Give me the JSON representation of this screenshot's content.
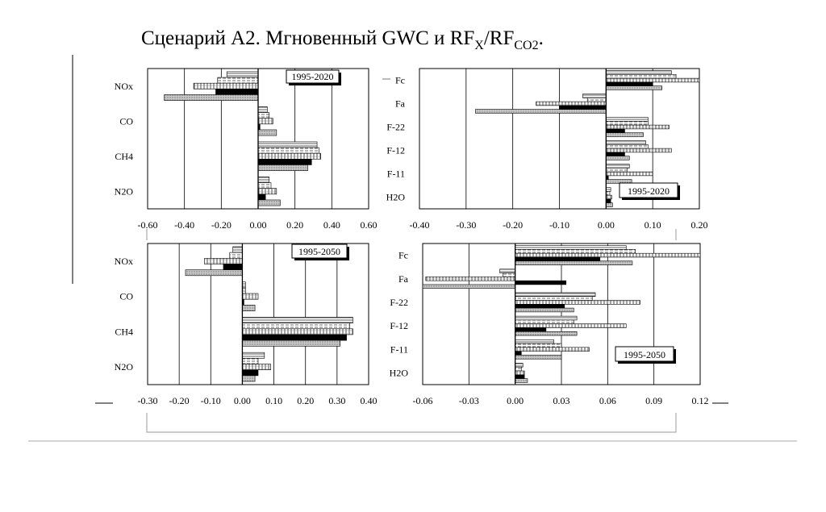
{
  "title": {
    "prefix": "Сценарий А2. Мгновенный GWC и RF",
    "sub1": "X",
    "slash": "/RF",
    "sub2": "CO2",
    "suffix": "."
  },
  "chart_data": [
    {
      "type": "bar",
      "orientation": "horizontal",
      "legend_label": "1995-2020",
      "xlim": [
        -0.6,
        0.6
      ],
      "xticks": [
        "-0.60",
        "-0.40",
        "-0.20",
        "0.00",
        "0.20",
        "0.40",
        "0.60"
      ],
      "categories": [
        "NOx",
        "CO",
        "CH4",
        "N2O"
      ],
      "series": [
        {
          "values": [
            -0.17,
            0.05,
            0.32,
            0.06
          ]
        },
        {
          "values": [
            -0.22,
            0.06,
            0.33,
            0.07
          ]
        },
        {
          "values": [
            -0.35,
            0.08,
            0.34,
            0.1
          ]
        },
        {
          "values": [
            -0.23,
            0.01,
            0.29,
            0.04
          ]
        },
        {
          "values": [
            -0.51,
            0.1,
            0.27,
            0.12
          ]
        }
      ]
    },
    {
      "type": "bar",
      "orientation": "horizontal",
      "legend_label": "1995-2020",
      "xlim": [
        -0.4,
        0.2
      ],
      "xticks": [
        "-0.40",
        "-0.30",
        "-0.20",
        "-0.10",
        "0.00",
        "0.10",
        "0.20"
      ],
      "categories": [
        "Fc",
        "Fa",
        "F-22",
        "F-12",
        "F-11",
        "H2O"
      ],
      "series": [
        {
          "values": [
            0.14,
            -0.05,
            0.09,
            0.085,
            0.05,
            0.01
          ]
        },
        {
          "values": [
            0.15,
            -0.04,
            0.09,
            0.09,
            0.045,
            0.008
          ]
        },
        {
          "values": [
            0.2,
            -0.15,
            0.135,
            0.14,
            0.1,
            0.012
          ]
        },
        {
          "values": [
            0.1,
            -0.1,
            0.04,
            0.04,
            0.005,
            0.01
          ]
        },
        {
          "values": [
            0.12,
            -0.28,
            0.08,
            0.05,
            0.055,
            0.014
          ]
        }
      ]
    },
    {
      "type": "bar",
      "orientation": "horizontal",
      "legend_label": "1995-2050",
      "xlim": [
        -0.3,
        0.4
      ],
      "xticks": [
        "-0.30",
        "-0.20",
        "-0.10",
        "0.00",
        "0.10",
        "0.20",
        "0.30",
        "0.40"
      ],
      "categories": [
        "NOx",
        "CO",
        "CH4",
        "N2O"
      ],
      "series": [
        {
          "values": [
            -0.03,
            0.01,
            0.35,
            0.07
          ]
        },
        {
          "values": [
            -0.04,
            0.01,
            0.34,
            0.05
          ]
        },
        {
          "values": [
            -0.12,
            0.05,
            0.35,
            0.09
          ]
        },
        {
          "values": [
            -0.06,
            0.005,
            0.33,
            0.05
          ]
        },
        {
          "values": [
            -0.18,
            0.04,
            0.31,
            0.04
          ]
        }
      ]
    },
    {
      "type": "bar",
      "orientation": "horizontal",
      "legend_label": "1995-2050",
      "xlim": [
        -0.06,
        0.12
      ],
      "xticks": [
        "-0.06",
        "-0.03",
        "0.00",
        "0.03",
        "0.06",
        "0.09",
        "0.12"
      ],
      "categories": [
        "Fc",
        "Fa",
        "F-22",
        "F-12",
        "F-11",
        "H2O"
      ],
      "series": [
        {
          "values": [
            0.072,
            -0.01,
            0.052,
            0.04,
            0.025,
            0.005
          ]
        },
        {
          "values": [
            0.078,
            -0.008,
            0.05,
            0.038,
            0.03,
            0.004
          ]
        },
        {
          "values": [
            0.12,
            -0.058,
            0.081,
            0.072,
            0.048,
            0.006
          ]
        },
        {
          "values": [
            0.055,
            0.033,
            0.032,
            0.02,
            0.004,
            0.006
          ]
        },
        {
          "values": [
            0.076,
            -0.06,
            0.038,
            0.04,
            0.03,
            0.008
          ]
        }
      ]
    }
  ]
}
